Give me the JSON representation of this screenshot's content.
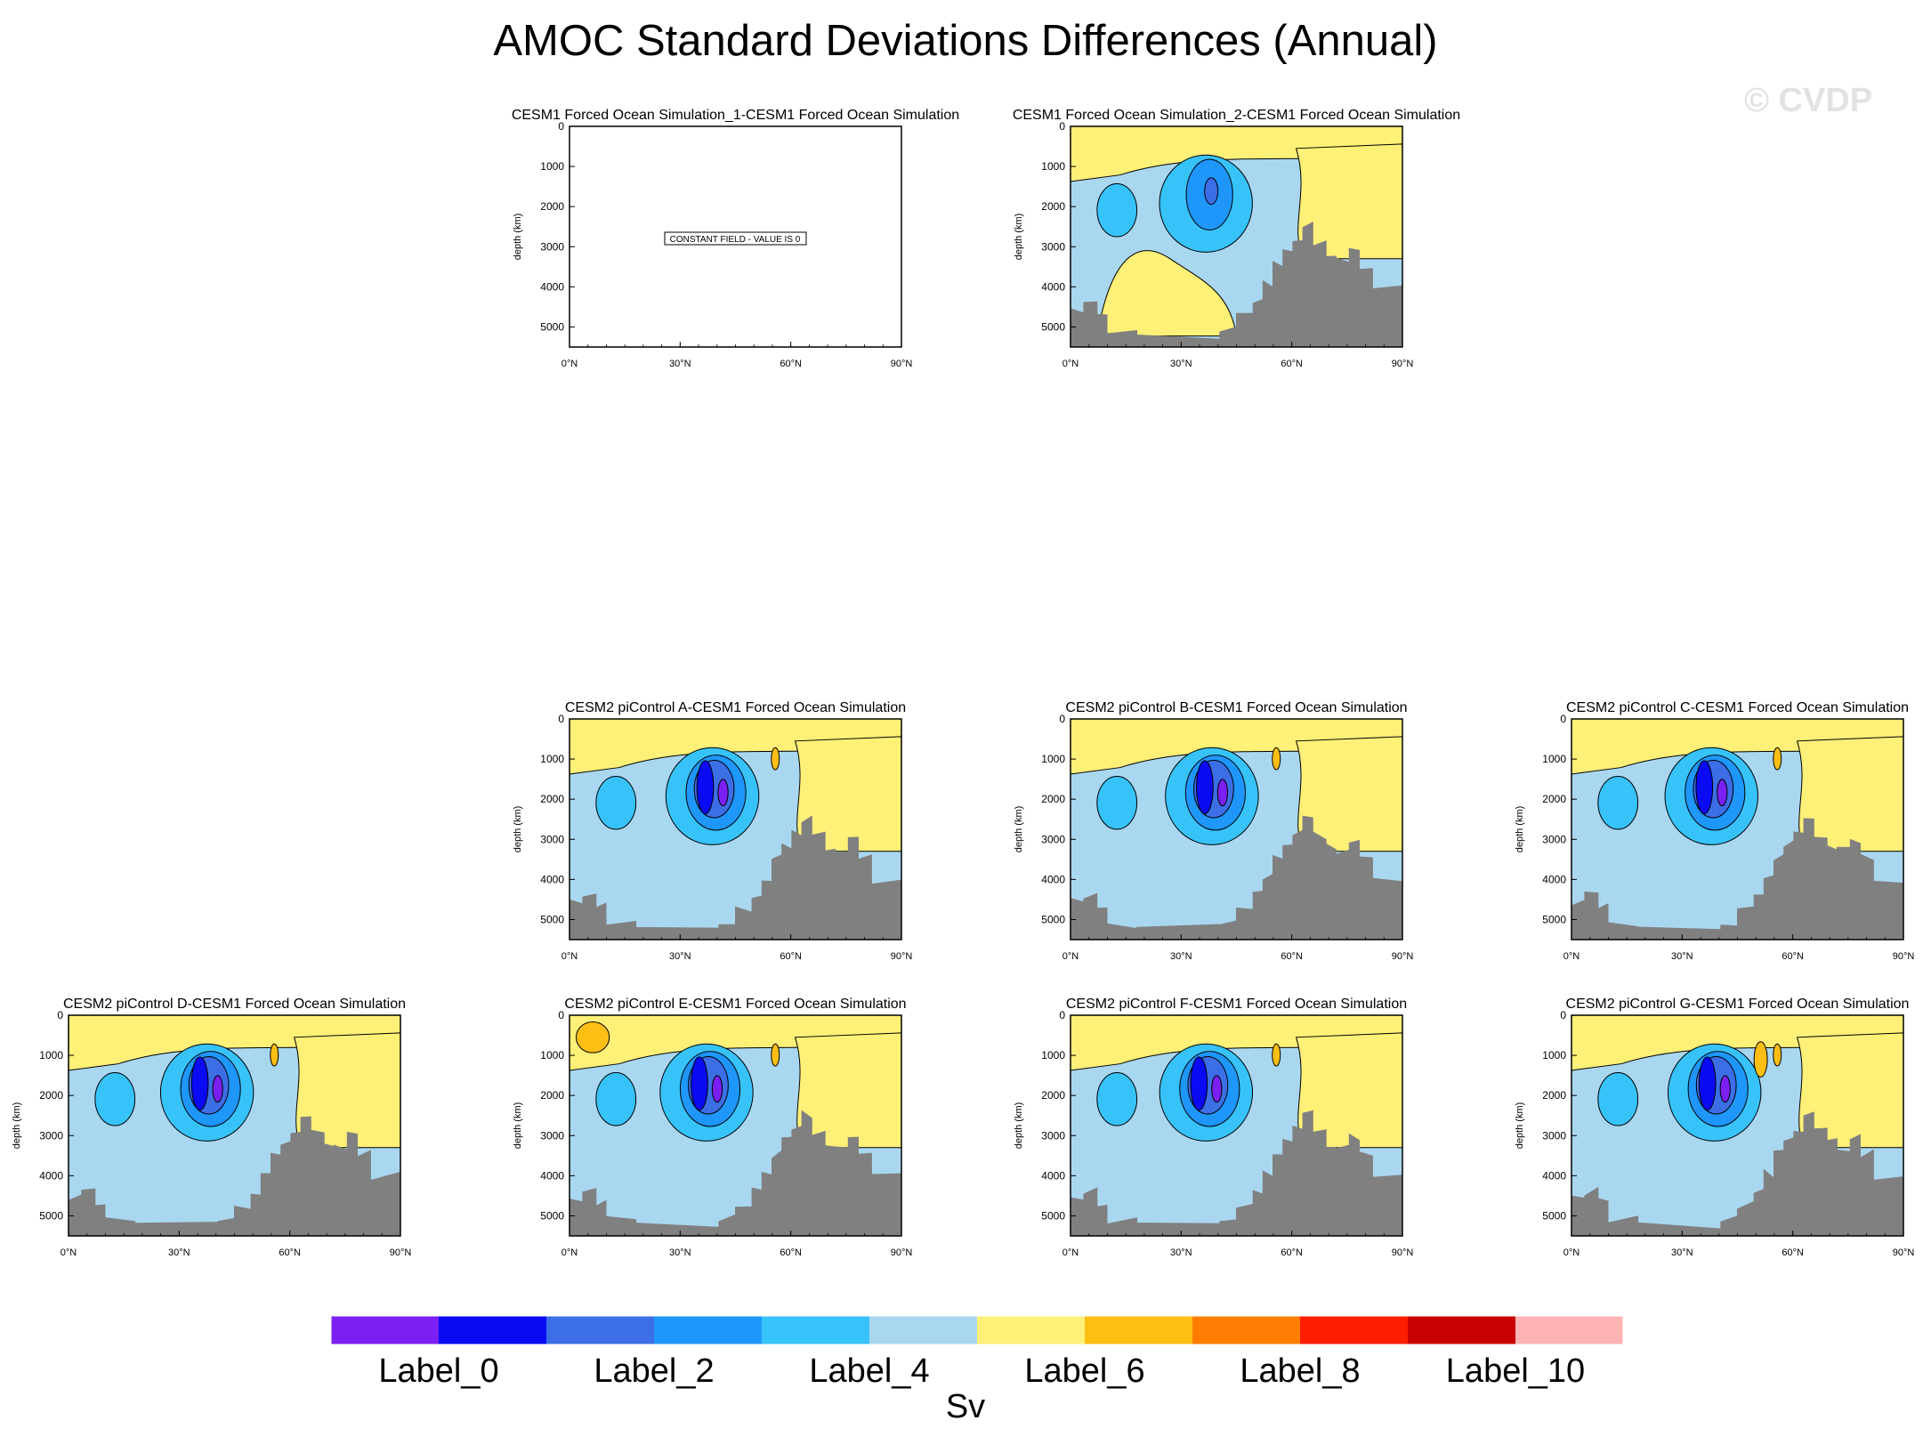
{
  "title": "AMOC Standard Deviations Differences (Annual)",
  "watermark": "© CVDP",
  "chart_data": {
    "type": "contour-panels",
    "variable": "AMOC standard deviation difference",
    "units": "Sv",
    "ylabel": "depth (km)",
    "yticks": [
      0,
      1000,
      2000,
      3000,
      4000,
      5000
    ],
    "ylim": [
      0,
      5500
    ],
    "xticks": [
      "0°N",
      "30°N",
      "60°N",
      "90°N"
    ],
    "xlim": [
      0,
      90
    ],
    "panels": [
      {
        "title": "CESM1 Forced Ocean Simulation_1-CESM1 Forced Ocean Simulation",
        "constant": true,
        "note": "CONSTANT FIELD - VALUE IS 0"
      },
      {
        "title": "CESM1 Forced Ocean Simulation_2-CESM1 Forced Ocean Simulation",
        "constant": false
      },
      {
        "title": "CESM2 piControl A-CESM1 Forced Ocean Simulation",
        "constant": false
      },
      {
        "title": "CESM2 piControl B-CESM1 Forced Ocean Simulation",
        "constant": false
      },
      {
        "title": "CESM2 piControl C-CESM1 Forced Ocean Simulation",
        "constant": false
      },
      {
        "title": "CESM2 piControl D-CESM1 Forced Ocean Simulation",
        "constant": false
      },
      {
        "title": "CESM2 piControl E-CESM1 Forced Ocean Simulation",
        "constant": false
      },
      {
        "title": "CESM2 piControl F-CESM1 Forced Ocean Simulation",
        "constant": false
      },
      {
        "title": "CESM2 piControl G-CESM1 Forced Ocean Simulation",
        "constant": false
      }
    ],
    "colorbar": {
      "colors": [
        "#7b1ff2",
        "#0a0af5",
        "#3c6ee6",
        "#1e96fa",
        "#37c3fa",
        "#aad7f0",
        "#fff078",
        "#ffbe14",
        "#ff7d00",
        "#ff1e00",
        "#c80000",
        "#ffb4b4"
      ],
      "labels": [
        "Label_0",
        "Label_2",
        "Label_4",
        "Label_6",
        "Label_8",
        "Label_10"
      ]
    }
  }
}
